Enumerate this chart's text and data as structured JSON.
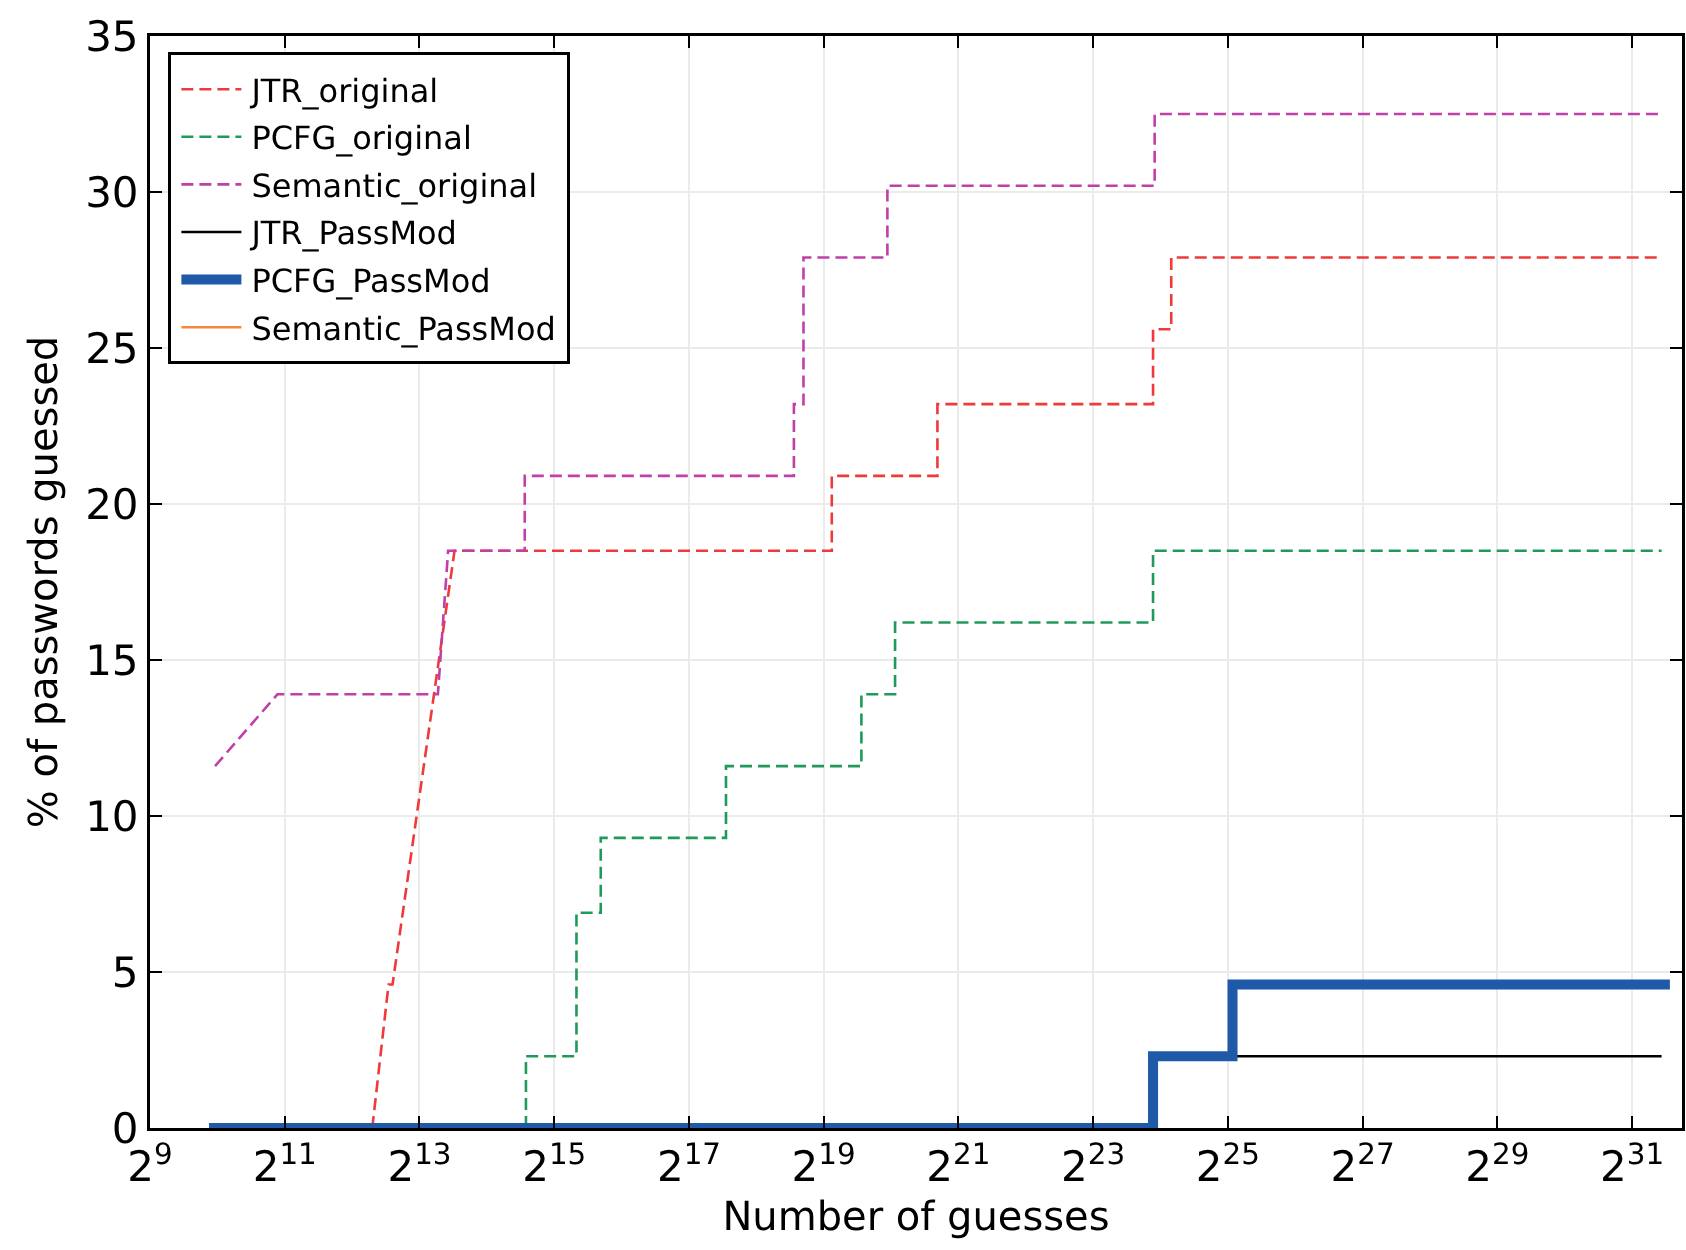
{
  "chart_data": {
    "type": "line",
    "xlabel": "Number of guesses",
    "ylabel": "% of passwords guessed",
    "log": "x",
    "grid": true,
    "legend": "top left",
    "marker": "none",
    "xlim": [
      512,
      3590000000
    ],
    "ylim": [
      0,
      35
    ],
    "xticks": [
      {
        "value": 512,
        "label": "2$^{9}$"
      },
      {
        "value": 2048,
        "label": "2$^{11}$"
      },
      {
        "value": 8192,
        "label": "2$^{13}$"
      },
      {
        "value": 32768,
        "label": "2$^{15}$"
      },
      {
        "value": 131072,
        "label": "2$^{17}$"
      },
      {
        "value": 524288,
        "label": "2$^{19}$"
      },
      {
        "value": 2097152,
        "label": "2$^{21}$"
      },
      {
        "value": 8388608,
        "label": "2$^{23}$"
      },
      {
        "value": 33554432,
        "label": "2$^{25}$"
      },
      {
        "value": 134217728,
        "label": "2$^{27}$"
      },
      {
        "value": 536870912,
        "label": "2$^{29}$"
      },
      {
        "value": 2147483648,
        "label": "2$^{31}$"
      }
    ],
    "yticks": [
      0,
      5,
      10,
      15,
      20,
      25,
      30,
      35
    ],
    "series": [
      {
        "name": "JTR_original",
        "color": "#ee3a3a",
        "line_style": "dashed",
        "x": [
          5040,
          5960,
          6210,
          11750,
          570000,
          570000,
          1690000,
          1690000,
          15540000,
          15540000,
          18740000,
          18740000,
          2910000000
        ],
        "values": [
          0,
          4.6,
          4.6,
          18.5,
          18.5,
          20.9,
          20.9,
          23.2,
          23.2,
          25.6,
          25.6,
          27.9,
          27.9
        ]
      },
      {
        "name": "PCFG_original",
        "color": "#1f9a5a",
        "line_style": "dashed",
        "x": [
          24500,
          24500,
          41200,
          41200,
          52900,
          52900,
          191900,
          191900,
          773000,
          773000,
          1093000,
          1093000,
          15540000,
          15540000,
          2910000000
        ],
        "values": [
          0,
          2.3,
          2.3,
          6.9,
          6.9,
          9.3,
          9.3,
          11.6,
          11.6,
          13.9,
          13.9,
          16.2,
          16.2,
          18.5,
          18.5
        ]
      },
      {
        "name": "Semantic_original",
        "color": "#c040a8",
        "line_style": "dashed",
        "x": [
          1000,
          1900,
          9900,
          11000,
          24200,
          24200,
          386000,
          386000,
          426000,
          426000,
          1010000,
          1010000,
          15800000,
          15800000,
          2910000000
        ],
        "values": [
          11.6,
          13.9,
          13.9,
          18.5,
          18.5,
          20.9,
          20.9,
          23.2,
          23.2,
          27.9,
          27.9,
          30.2,
          30.2,
          32.5,
          32.5
        ]
      },
      {
        "name": "JTR_PassMod",
        "color": "#000000",
        "line_style": "solid",
        "x": [
          35200000,
          2910000000
        ],
        "values": [
          2.3,
          2.3
        ]
      },
      {
        "name": "PCFG_PassMod",
        "color": "#1f5aa8",
        "line_style": "solid",
        "x": [
          940,
          15540000,
          15540000,
          35200000,
          35200000,
          3170000000
        ],
        "values": [
          0,
          0,
          2.3,
          2.3,
          4.6,
          4.6
        ]
      },
      {
        "name": "Semantic_PassMod",
        "color": "#f5883c",
        "line_style": "solid",
        "values": [
          null
        ]
      }
    ]
  }
}
